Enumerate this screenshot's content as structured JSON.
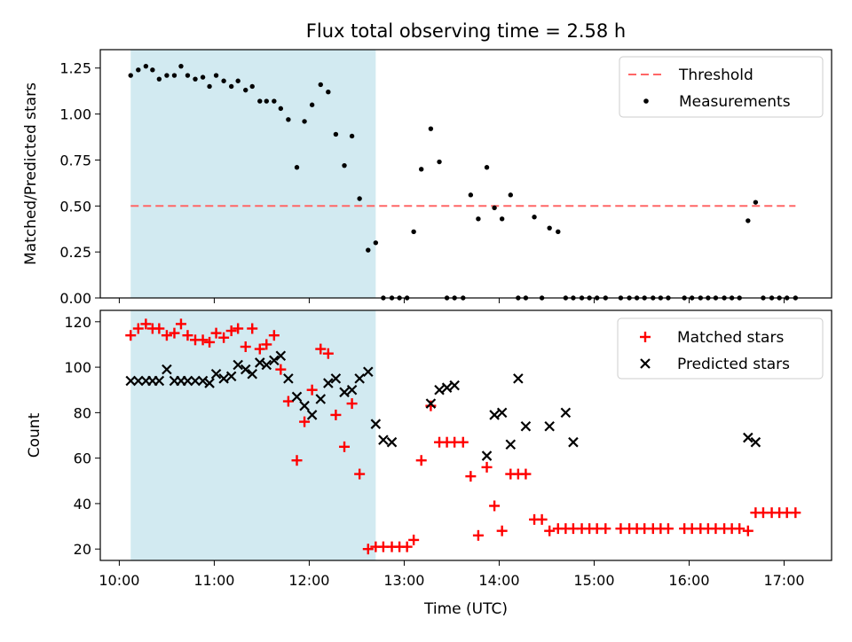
{
  "chart_data": [
    {
      "type": "scatter",
      "title": "Flux total observing time = 2.58 h",
      "xlabel": "",
      "ylabel": "Matched/Predicted stars",
      "ylim": [
        0,
        1.35
      ],
      "yticks": [
        "0.00",
        "0.25",
        "0.50",
        "0.75",
        "1.00",
        "1.25"
      ],
      "ytick_values": [
        0,
        0.25,
        0.5,
        0.75,
        1.0,
        1.25
      ],
      "shaded_span_hours": [
        10.12,
        12.7
      ],
      "shade_color": "#add8e6",
      "threshold": {
        "name": "Threshold",
        "value": 0.5,
        "color": "#ff6666",
        "x_range_hours": [
          10.12,
          17.12
        ]
      },
      "legend": {
        "placement": "upper right",
        "entries": [
          "Threshold",
          "Measurements"
        ]
      },
      "series": [
        {
          "name": "Measurements",
          "color": "#000000",
          "marker": "dot",
          "x": [
            10.12,
            10.2,
            10.28,
            10.35,
            10.42,
            10.5,
            10.58,
            10.65,
            10.72,
            10.8,
            10.88,
            10.95,
            11.02,
            11.1,
            11.18,
            11.25,
            11.33,
            11.4,
            11.48,
            11.55,
            11.63,
            11.7,
            11.78,
            11.87,
            11.95,
            12.03,
            12.12,
            12.2,
            12.28,
            12.37,
            12.45,
            12.53,
            12.62,
            12.7,
            12.78,
            12.87,
            12.95,
            13.03,
            13.1,
            13.18,
            13.28,
            13.37,
            13.45,
            13.53,
            13.62,
            13.7,
            13.78,
            13.87,
            13.95,
            14.03,
            14.12,
            14.2,
            14.28,
            14.37,
            14.45,
            14.53,
            14.62,
            14.7,
            14.78,
            14.87,
            14.95,
            15.03,
            15.12,
            15.28,
            15.37,
            15.45,
            15.53,
            15.62,
            15.7,
            15.78,
            15.95,
            16.03,
            16.12,
            16.2,
            16.28,
            16.37,
            16.45,
            16.53,
            16.62,
            16.7,
            16.78,
            16.87,
            16.95,
            17.03,
            17.12
          ],
          "y": [
            1.21,
            1.24,
            1.26,
            1.24,
            1.19,
            1.21,
            1.21,
            1.26,
            1.21,
            1.19,
            1.2,
            1.15,
            1.21,
            1.18,
            1.15,
            1.18,
            1.13,
            1.15,
            1.07,
            1.07,
            1.07,
            1.03,
            0.97,
            0.71,
            0.96,
            1.05,
            1.16,
            1.12,
            0.89,
            0.72,
            0.88,
            0.54,
            0.26,
            0.3,
            0.0,
            0.0,
            0.0,
            0.0,
            0.36,
            0.7,
            0.92,
            0.74,
            0.0,
            0.0,
            0.0,
            0.56,
            0.43,
            0.71,
            0.49,
            0.43,
            0.56,
            0.0,
            0.0,
            0.44,
            0.0,
            0.38,
            0.36,
            0.0,
            0.0,
            0.0,
            0.0,
            0.0,
            0.0,
            0.0,
            0.0,
            0.0,
            0.0,
            0.0,
            0.0,
            0.0,
            0.0,
            0.0,
            0.0,
            0.0,
            0.0,
            0.0,
            0.0,
            0.0,
            0.42,
            0.52,
            0.0,
            0.0,
            0.0,
            0.0,
            0.0
          ]
        }
      ]
    },
    {
      "type": "scatter",
      "title": "",
      "xlabel": "Time (UTC)",
      "ylabel": "Count",
      "ylim": [
        15,
        125
      ],
      "yticks": [
        "20",
        "40",
        "60",
        "80",
        "100",
        "120"
      ],
      "ytick_values": [
        20,
        40,
        60,
        80,
        100,
        120
      ],
      "xlim_hours": [
        9.8,
        17.5
      ],
      "xticks": [
        "10:00",
        "11:00",
        "12:00",
        "13:00",
        "14:00",
        "15:00",
        "16:00",
        "17:00"
      ],
      "xtick_values": [
        10,
        11,
        12,
        13,
        14,
        15,
        16,
        17
      ],
      "shaded_span_hours": [
        10.12,
        12.7
      ],
      "shade_color": "#add8e6",
      "legend": {
        "placement": "upper right",
        "entries": [
          "Matched stars",
          "Predicted stars"
        ]
      },
      "series": [
        {
          "name": "Matched stars",
          "color": "#ff0000",
          "marker": "plus",
          "x": [
            10.12,
            10.2,
            10.28,
            10.35,
            10.42,
            10.5,
            10.58,
            10.65,
            10.72,
            10.8,
            10.88,
            10.95,
            11.02,
            11.1,
            11.18,
            11.25,
            11.33,
            11.4,
            11.48,
            11.55,
            11.63,
            11.7,
            11.78,
            11.87,
            11.95,
            12.03,
            12.12,
            12.2,
            12.28,
            12.37,
            12.45,
            12.53,
            12.62,
            12.7,
            12.78,
            12.87,
            12.95,
            13.03,
            13.1,
            13.18,
            13.28,
            13.37,
            13.45,
            13.53,
            13.62,
            13.7,
            13.78,
            13.87,
            13.95,
            14.03,
            14.12,
            14.2,
            14.28,
            14.37,
            14.45,
            14.53,
            14.62,
            14.7,
            14.78,
            14.87,
            14.95,
            15.03,
            15.12,
            15.28,
            15.37,
            15.45,
            15.53,
            15.62,
            15.7,
            15.78,
            15.95,
            16.03,
            16.12,
            16.2,
            16.28,
            16.37,
            16.45,
            16.53,
            16.62,
            16.7,
            16.78,
            16.87,
            16.95,
            17.03,
            17.12
          ],
          "y": [
            114,
            117,
            119,
            117,
            117,
            114,
            115,
            119,
            114,
            112,
            112,
            111,
            115,
            113,
            116,
            117,
            109,
            117,
            108,
            110,
            114,
            99,
            85,
            59,
            76,
            90,
            108,
            106,
            79,
            65,
            84,
            53,
            20,
            21,
            21,
            21,
            21,
            21,
            24,
            59,
            83,
            67,
            67,
            67,
            67,
            52,
            26,
            56,
            39,
            28,
            53,
            53,
            53,
            33,
            33,
            28,
            29,
            29,
            29,
            29,
            29,
            29,
            29,
            29,
            29,
            29,
            29,
            29,
            29,
            29,
            29,
            29,
            29,
            29,
            29,
            29,
            29,
            29,
            28,
            36,
            36,
            36,
            36,
            36,
            36
          ]
        },
        {
          "name": "Predicted stars",
          "color": "#000000",
          "marker": "x",
          "x": [
            10.12,
            10.2,
            10.28,
            10.35,
            10.42,
            10.5,
            10.58,
            10.65,
            10.72,
            10.8,
            10.88,
            10.95,
            11.02,
            11.1,
            11.18,
            11.25,
            11.33,
            11.4,
            11.48,
            11.55,
            11.63,
            11.7,
            11.78,
            11.87,
            11.95,
            12.03,
            12.12,
            12.2,
            12.28,
            12.37,
            12.45,
            12.53,
            12.62,
            12.7,
            12.78,
            12.87,
            13.28,
            13.37,
            13.45,
            13.53,
            13.87,
            13.95,
            14.03,
            14.12,
            14.2,
            14.28,
            14.53,
            14.7,
            14.78,
            16.62,
            16.7
          ],
          "y": [
            94,
            94,
            94,
            94,
            94,
            99,
            94,
            94,
            94,
            94,
            94,
            93,
            97,
            95,
            96,
            101,
            99,
            97,
            102,
            101,
            103,
            105,
            95,
            87,
            83,
            79,
            86,
            93,
            95,
            89,
            90,
            95,
            98,
            75,
            68,
            67,
            84,
            90,
            91,
            92,
            61,
            79,
            80,
            66,
            95,
            74,
            74,
            80,
            67,
            69,
            67
          ]
        }
      ]
    }
  ]
}
